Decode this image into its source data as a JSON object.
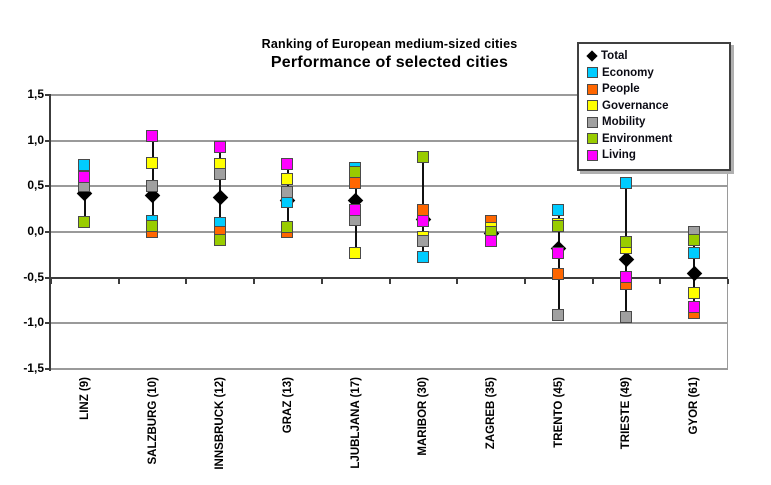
{
  "chart_data": {
    "type": "scatter",
    "title": "Ranking of European medium-sized cities",
    "subtitle": "Performance of selected cities",
    "categories": [
      "LINZ (9)",
      "SALZBURG (10)",
      "INNSBRUCK (12)",
      "GRAZ (13)",
      "LJUBLJANA (17)",
      "MARIBOR (30)",
      "ZAGREB (35)",
      "TRENTO (45)",
      "TRIESTE (49)",
      "GYOR (61)"
    ],
    "series": [
      {
        "name": "Total",
        "marker": "diamond",
        "color": "#000000",
        "values": [
          0.42,
          0.4,
          0.38,
          0.35,
          0.34,
          0.14,
          -0.02,
          -0.18,
          -0.3,
          -0.45
        ]
      },
      {
        "name": "Economy",
        "marker": "square",
        "color": "#00CCFF",
        "values": [
          0.73,
          0.12,
          0.09,
          0.32,
          0.7,
          -0.28,
          0.0,
          0.23,
          0.53,
          -0.24
        ]
      },
      {
        "name": "People",
        "marker": "square",
        "color": "#FF6600",
        "values": [
          0.6,
          0.0,
          0.0,
          -0.01,
          0.53,
          0.24,
          0.12,
          -0.47,
          -0.58,
          -0.89
        ]
      },
      {
        "name": "Governance",
        "marker": "square",
        "color": "#FFFF00",
        "values": [
          0.5,
          0.75,
          0.74,
          0.58,
          -0.24,
          -0.06,
          0.04,
          0.08,
          -0.18,
          -0.67
        ]
      },
      {
        "name": "Mobility",
        "marker": "square",
        "color": "#A0A0A0",
        "values": [
          0.5,
          0.5,
          0.63,
          0.43,
          0.13,
          -0.1,
          -0.1,
          -0.91,
          -0.94,
          -0.01
        ]
      },
      {
        "name": "Environment",
        "marker": "square",
        "color": "#99CC00",
        "values": [
          0.1,
          0.06,
          -0.09,
          0.05,
          0.65,
          0.82,
          0.0,
          0.06,
          -0.12,
          -0.09
        ]
      },
      {
        "name": "Living",
        "marker": "square",
        "color": "#FF00FF",
        "values": [
          0.6,
          1.05,
          0.93,
          0.74,
          0.24,
          0.12,
          -0.1,
          -0.24,
          -0.5,
          -0.83
        ]
      }
    ],
    "ylim": [
      -1.5,
      1.5
    ],
    "y_tick_step": 0.5,
    "y_tick_labels": [
      "1,5",
      "1,0",
      "0,5",
      "0,0",
      "-0,5",
      "-1,0",
      "-1,5"
    ],
    "x_axis_cross_value": -0.5,
    "grid": true,
    "legend_position": "top-right",
    "high_low_lines": true
  },
  "colors": {
    "gridline": "#9a9a9a",
    "axis": "#3c3c3c",
    "high_low_line": "#101010",
    "background": "#ffffff"
  }
}
